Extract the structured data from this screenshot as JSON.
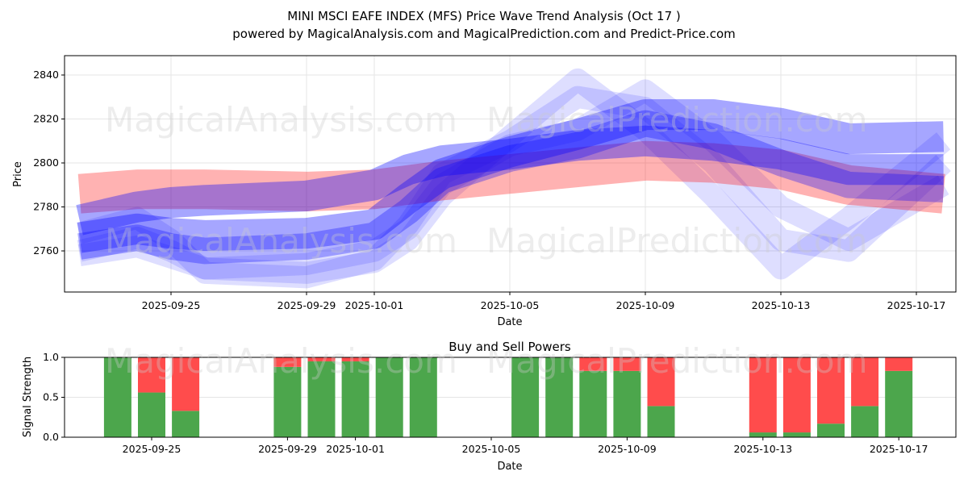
{
  "title": "MINI MSCI EAFE INDEX (MFS) Price Wave Trend Analysis (Oct 17 )",
  "subtitle": "powered by MagicalAnalysis.com and MagicalPrediction.com and Predict-Price.com",
  "watermarks": [
    "MagicalAnalysis.com",
    "MagicalPrediction.com"
  ],
  "colors": {
    "red_band": "#ff0000",
    "blue_band": "#0000ff",
    "buy": "#4ca64c",
    "sell": "#ff4c4c"
  },
  "chart_data": [
    {
      "type": "area",
      "title": "",
      "xlabel": "Date",
      "ylabel": "Price",
      "ylim": [
        2741.3,
        2848.8
      ],
      "xlim_days_from_2025-09-22": [
        -0.14,
        26.2
      ],
      "yticks": [
        2760,
        2780,
        2800,
        2820,
        2840
      ],
      "xticks": [
        {
          "day": 3,
          "label": "2025-09-25"
        },
        {
          "day": 7,
          "label": "2025-09-29"
        },
        {
          "day": 9,
          "label": "2025-10-01"
        },
        {
          "day": 13,
          "label": "2025-10-05"
        },
        {
          "day": 17,
          "label": "2025-10-09"
        },
        {
          "day": 21,
          "label": "2025-10-13"
        },
        {
          "day": 25,
          "label": "2025-10-17"
        }
      ],
      "grid": true,
      "x_days": [
        0.3,
        2,
        3,
        4,
        7,
        9,
        10,
        11,
        13,
        15,
        17,
        19,
        21,
        23,
        25.8
      ],
      "series": [
        {
          "name": "wave-light-1",
          "color": "blue",
          "opacity": 0.13,
          "halfwidth": 5,
          "values": [
            2760,
            2766,
            2760,
            2752,
            2750,
            2755,
            2765,
            2785,
            2812,
            2838,
            2815,
            2785,
            2752,
            2775,
            2810
          ]
        },
        {
          "name": "wave-light-2",
          "color": "blue",
          "opacity": 0.13,
          "halfwidth": 5,
          "values": [
            2768,
            2775,
            2765,
            2750,
            2748,
            2756,
            2772,
            2795,
            2810,
            2830,
            2825,
            2800,
            2765,
            2760,
            2800
          ]
        },
        {
          "name": "wave-light-3",
          "color": "blue",
          "opacity": 0.13,
          "halfwidth": 5,
          "values": [
            2758,
            2762,
            2757,
            2752,
            2754,
            2760,
            2770,
            2790,
            2808,
            2815,
            2833,
            2810,
            2780,
            2765,
            2790
          ]
        },
        {
          "name": "wave-red",
          "color": "red",
          "opacity": 0.3,
          "halfwidth": 9,
          "values": [
            2786,
            2788,
            2788,
            2788,
            2787,
            2788,
            2790,
            2792,
            2795,
            2798,
            2801,
            2800,
            2797,
            2790,
            2786
          ]
        },
        {
          "name": "wave-blue-a",
          "color": "blue",
          "opacity": 0.35,
          "halfwidth": 7,
          "values": [
            2774,
            2780,
            2782,
            2783,
            2785,
            2790,
            2797,
            2801,
            2804,
            2808,
            2810,
            2808,
            2804,
            2797,
            2797
          ]
        },
        {
          "name": "wave-blue-b",
          "color": "blue",
          "opacity": 0.35,
          "halfwidth": 7,
          "values": [
            2766,
            2770,
            2768,
            2767,
            2768,
            2772,
            2784,
            2795,
            2805,
            2813,
            2822,
            2822,
            2818,
            2811,
            2812
          ]
        },
        {
          "name": "wave-blue-c",
          "color": "blue",
          "opacity": 0.3,
          "halfwidth": 6,
          "values": [
            2762,
            2766,
            2762,
            2760,
            2762,
            2767,
            2778,
            2792,
            2802,
            2808,
            2818,
            2812,
            2800,
            2790,
            2788
          ]
        }
      ]
    },
    {
      "type": "bar",
      "title": "Buy and Sell Powers",
      "xlabel": "Date",
      "ylabel": "Signal Strength",
      "ylim": [
        0,
        1
      ],
      "yticks": [
        "0.0",
        "0.5",
        "1.0"
      ],
      "xticks": [
        {
          "day": 3,
          "label": "2025-09-25"
        },
        {
          "day": 7,
          "label": "2025-09-29"
        },
        {
          "day": 9,
          "label": "2025-10-01"
        },
        {
          "day": 13,
          "label": "2025-10-05"
        },
        {
          "day": 17,
          "label": "2025-10-09"
        },
        {
          "day": 21,
          "label": "2025-10-13"
        },
        {
          "day": 25,
          "label": "2025-10-17"
        }
      ],
      "categories": [
        "2025-09-24",
        "2025-09-25",
        "2025-09-26",
        "2025-09-29",
        "2025-09-30",
        "2025-10-01",
        "2025-10-02",
        "2025-10-03",
        "2025-10-06",
        "2025-10-07",
        "2025-10-08",
        "2025-10-09",
        "2025-10-10",
        "2025-10-13",
        "2025-10-14",
        "2025-10-15",
        "2025-10-16",
        "2025-10-17"
      ],
      "days": [
        2,
        3,
        4,
        7,
        8,
        9,
        10,
        11,
        14,
        15,
        16,
        17,
        18,
        21,
        22,
        23,
        24,
        25
      ],
      "series": [
        {
          "name": "Buy",
          "values": [
            1.0,
            0.56,
            0.33,
            0.88,
            0.95,
            0.95,
            1.0,
            1.0,
            1.0,
            1.0,
            0.83,
            0.83,
            0.39,
            0.06,
            0.06,
            0.17,
            0.39,
            0.83
          ]
        },
        {
          "name": "Sell",
          "values": [
            0.0,
            0.44,
            0.67,
            0.12,
            0.05,
            0.05,
            0.0,
            0.0,
            0.0,
            0.0,
            0.17,
            0.17,
            0.61,
            0.94,
            0.94,
            0.83,
            0.61,
            0.17
          ]
        }
      ]
    }
  ]
}
